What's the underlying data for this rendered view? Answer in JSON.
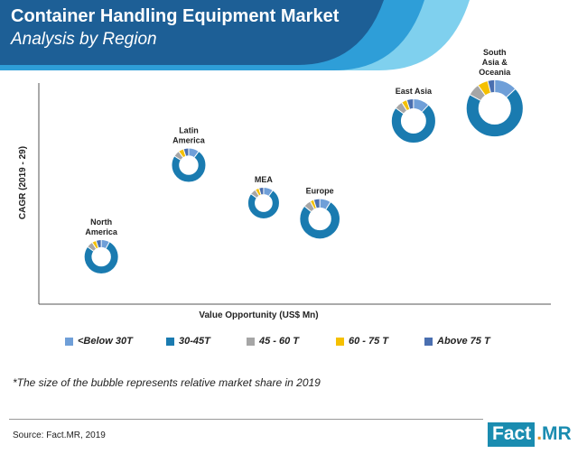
{
  "header": {
    "title": "Container Handling Equipment Market",
    "subtitle": "Analysis by Region"
  },
  "colors": {
    "header_dark": "#1d5f96",
    "header_mid": "#2e9ed8",
    "header_light": "#7fd0ee"
  },
  "chart_data": {
    "type": "bubble-donut",
    "xlabel": "Value Opportunity (US$ Mn)",
    "ylabel": "CAGR (2019 - 29)",
    "series_names": [
      "<Below 30T",
      "30-45T",
      "45 - 60 T",
      "60 - 75 T",
      "Above 75 T"
    ],
    "series_colors": [
      "#6f9fd8",
      "#1a7bb0",
      "#a6a6a6",
      "#f5c000",
      "#4a6fb0"
    ],
    "regions": [
      {
        "label": "North America",
        "value_opportunity": 1.0,
        "cagr": 1.5,
        "market_share": 1.0,
        "shares": [
          8,
          77,
          6,
          4,
          5
        ]
      },
      {
        "label": "Latin America",
        "value_opportunity": 2.4,
        "cagr": 4.4,
        "market_share": 1.0,
        "shares": [
          10,
          74,
          6,
          5,
          5
        ]
      },
      {
        "label": "MEA",
        "value_opportunity": 3.6,
        "cagr": 3.2,
        "market_share": 0.92,
        "shares": [
          10,
          75,
          6,
          4,
          5
        ]
      },
      {
        "label": "Europe",
        "value_opportunity": 4.5,
        "cagr": 2.7,
        "market_share": 1.18,
        "shares": [
          9,
          77,
          6,
          3,
          5
        ]
      },
      {
        "label": "East Asia",
        "value_opportunity": 6.0,
        "cagr": 5.8,
        "market_share": 1.3,
        "shares": [
          12,
          73,
          6,
          4,
          5
        ]
      },
      {
        "label": "South Asia & Oceania",
        "value_opportunity": 7.3,
        "cagr": 6.2,
        "market_share": 1.68,
        "shares": [
          13,
          70,
          7,
          6,
          4
        ]
      }
    ]
  },
  "legend": {
    "items": [
      {
        "label": "<Below 30T",
        "color": "#6f9fd8"
      },
      {
        "label": "30-45T",
        "color": "#1a7bb0"
      },
      {
        "label": "45 - 60 T",
        "color": "#a6a6a6"
      },
      {
        "label": "60 - 75 T",
        "color": "#f5c000"
      },
      {
        "label": "Above 75 T",
        "color": "#4a6fb0"
      }
    ]
  },
  "footer": {
    "note": "*The size of the bubble represents relative market share in 2019",
    "source": "Source: Fact.MR, 2019",
    "logo_fact": "Fact",
    "logo_dot": ".",
    "logo_mr": "MR"
  }
}
